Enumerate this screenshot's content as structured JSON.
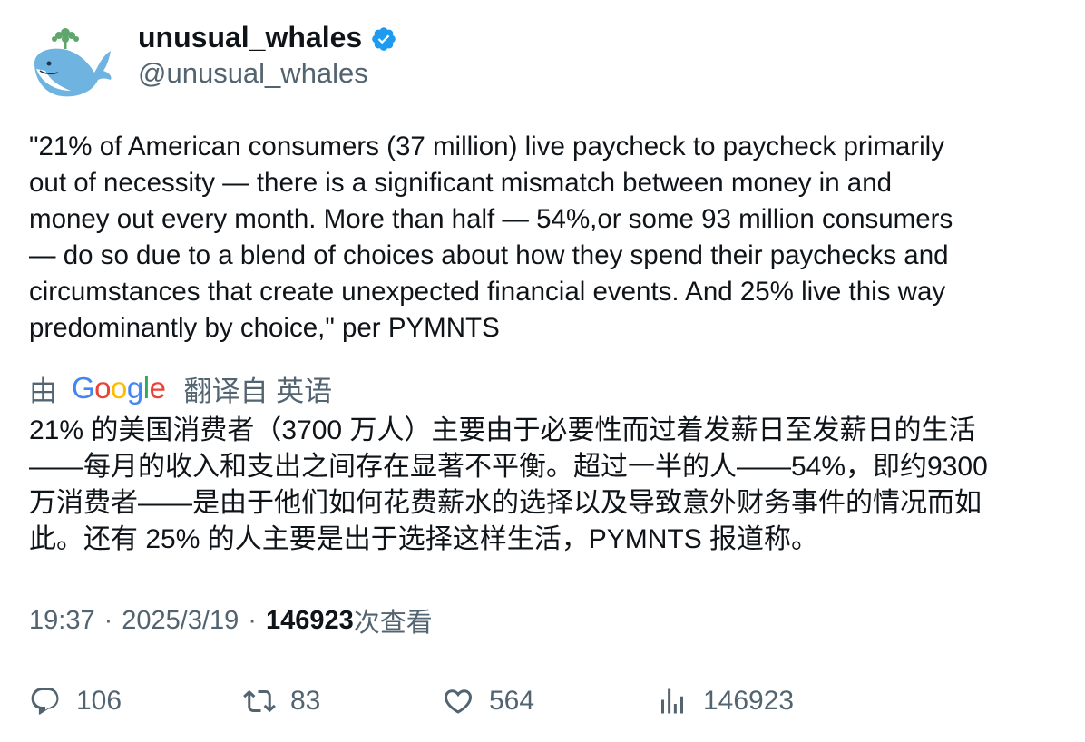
{
  "author": {
    "display_name": "unusual_whales",
    "handle": "@unusual_whales",
    "verified": true,
    "avatar_icon": "whale-icon"
  },
  "tweet": {
    "text": "\"21% of American consumers (37 million) live paycheck to paycheck primarily\nout of necessity — there is a significant mismatch between money in and\nmoney out every month. More than half — 54%,or some 93 million consumers\n— do so due to a blend of choices about how they spend their paychecks and\ncircumstances that create unexpected financial events. And 25% live this way\npredominantly by choice,\" per PYMNTS"
  },
  "translation": {
    "by_label": "由",
    "provider": "Google",
    "from_label": "翻译自 英语",
    "text": "21% 的美国消费者（3700 万人）主要由于必要性而过着发薪日至发薪日的生活\n——每月的收入和支出之间存在显著不平衡。超过一半的人——54%，即约9300\n万消费者——是由于他们如何花费薪水的选择以及导致意外财务事件的情况而如\n此。还有 25% 的人主要是出于选择这样生活，PYMNTS 报道称。"
  },
  "meta": {
    "time": "19:37",
    "separator": "·",
    "date": "2025/3/19",
    "views_count": "146923",
    "views_label": "次查看"
  },
  "actions": {
    "reply_count": "106",
    "retweet_count": "83",
    "like_count": "564",
    "views_count": "146923"
  },
  "colors": {
    "text_primary": "#0f1419",
    "text_secondary": "#536471",
    "verified_blue": "#1d9bf0",
    "avatar_whale": "#6fb3e0",
    "avatar_spout": "#5fa56d"
  }
}
